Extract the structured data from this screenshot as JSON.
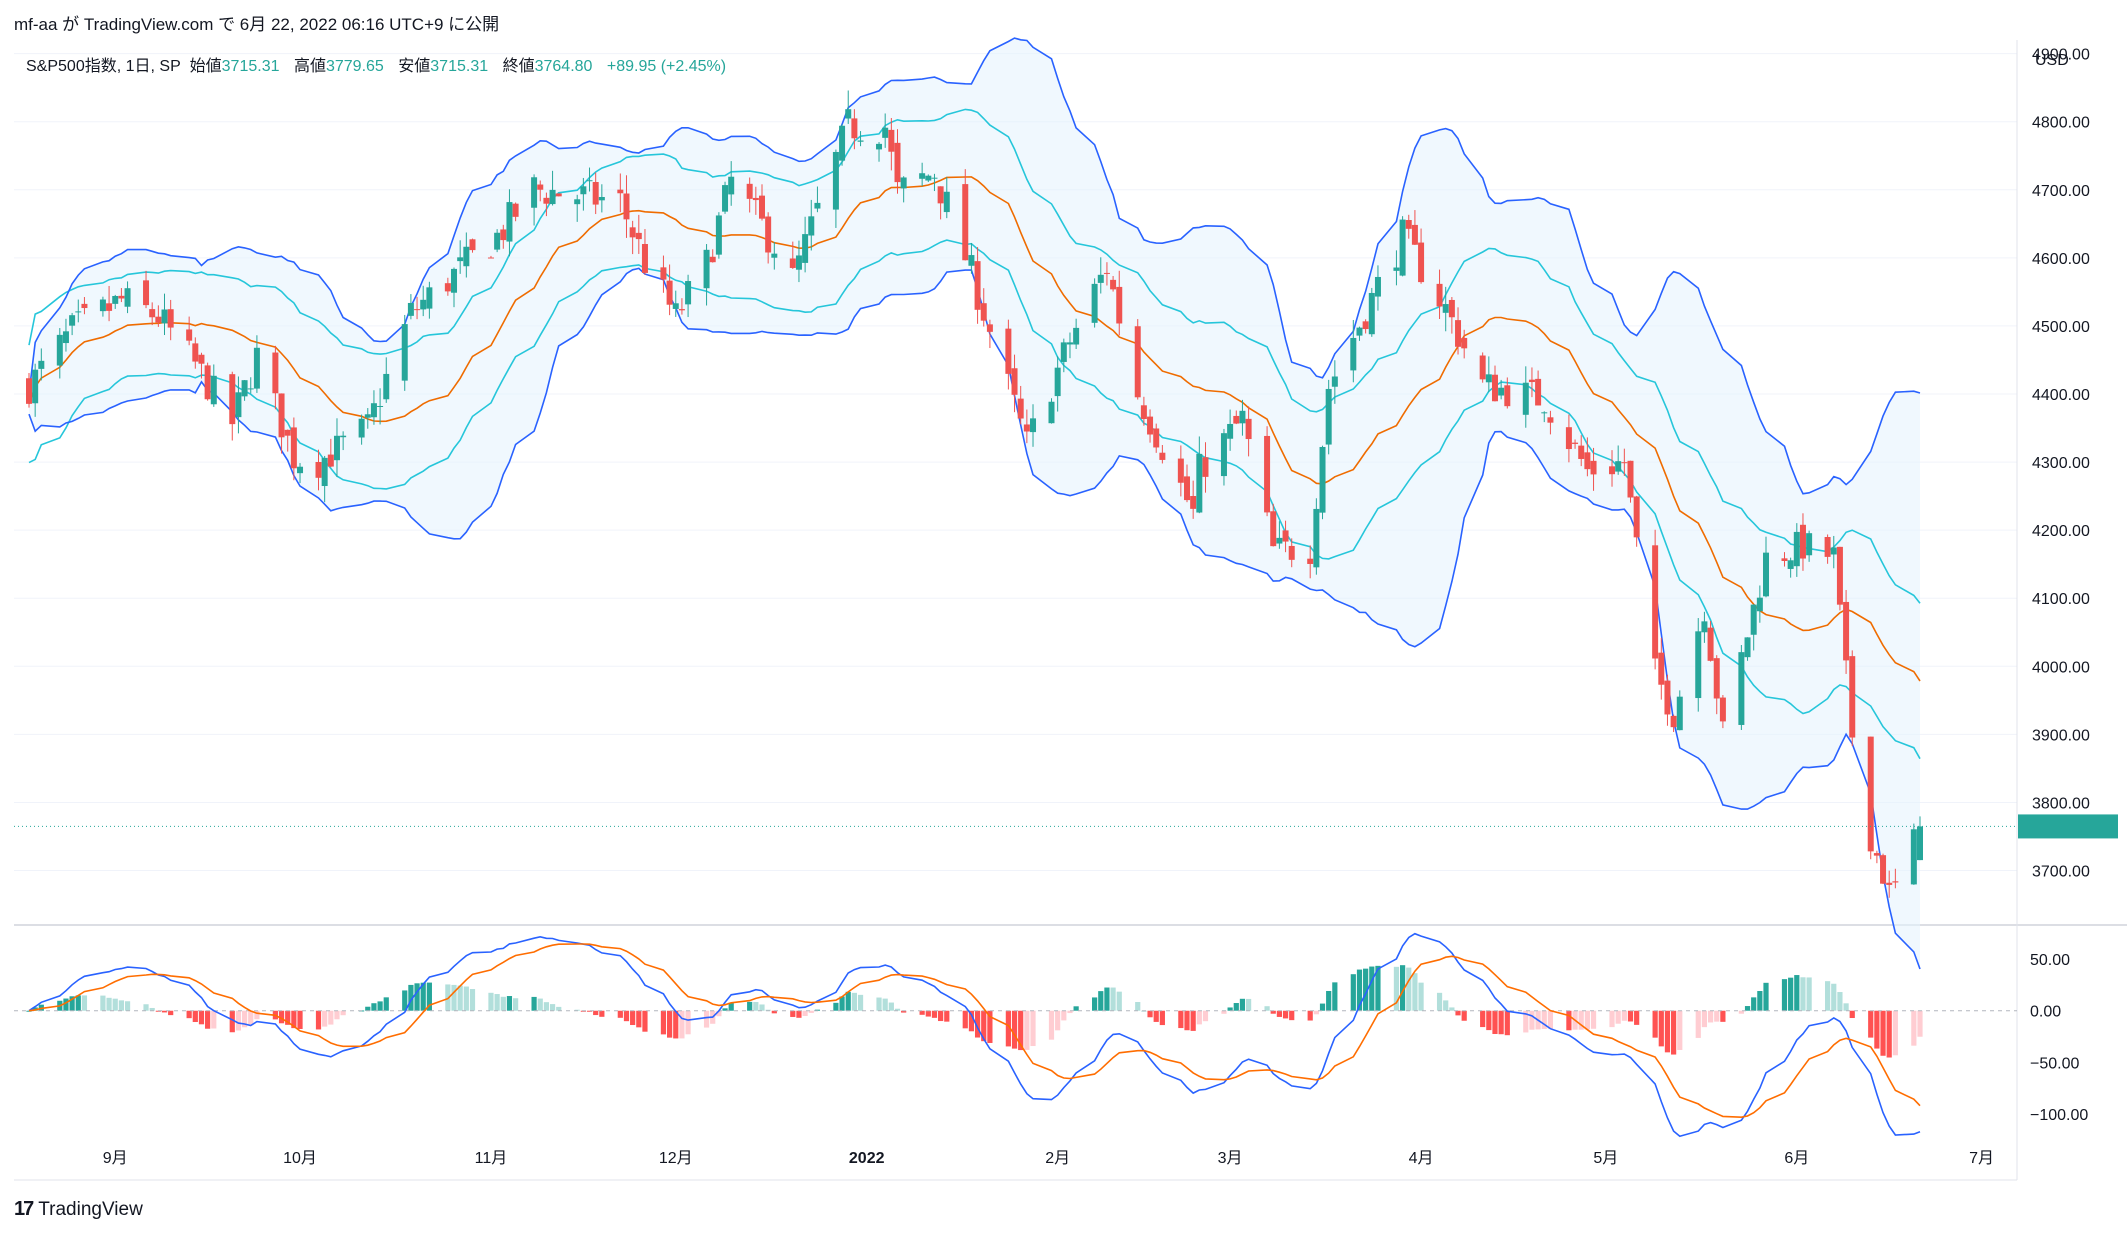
{
  "header": {
    "caption": "mf-aa が TradingView.com で 6月 22, 2022 06:16 UTC+9 に公開"
  },
  "legend": {
    "symbol": "S&P500指数, 1日, SP",
    "open_label": "始値",
    "open": "3715.31",
    "high_label": "高値",
    "high": "3779.65",
    "low_label": "安値",
    "low": "3715.31",
    "close_label": "終値",
    "close": "3764.80",
    "change": "+89.95 (+2.45%)"
  },
  "currency": "USD",
  "brand": {
    "logo": "17",
    "name": "TradingView"
  },
  "colors": {
    "up": "#26a69a",
    "down": "#ef5350",
    "bb_mid": "#ef6c00",
    "bb_outer": "#2962ff",
    "kc": "#26c6da",
    "band_fill": "#e3f2fd",
    "macd_line": "#2962ff",
    "signal_line": "#ff6d00",
    "hist_up_strong": "#26a69a",
    "hist_up_weak": "#b2dfdb",
    "hist_down_strong": "#ff5252",
    "hist_down_weak": "#ffcdd2",
    "grid": "#f0f3fa",
    "last_price_line": "#26a69a"
  },
  "chart_data": {
    "type": "candlestick",
    "price_axis": {
      "ylim": [
        3620,
        4920
      ],
      "ticks": [
        "3700.00",
        "3800.00",
        "3900.00",
        "4000.00",
        "4100.00",
        "4200.00",
        "4300.00",
        "4400.00",
        "4500.00",
        "4600.00",
        "4700.00",
        "4800.00",
        "4900.00"
      ]
    },
    "macd_axis": {
      "ylim": [
        -125,
        80
      ],
      "ticks": [
        "50.00",
        "0.00",
        "−50.00",
        "−100.00"
      ]
    },
    "x_labels": [
      "9月",
      "10月",
      "11月",
      "12月",
      "2022",
      "2月",
      "3月",
      "4月",
      "5月",
      "6月",
      "7月"
    ],
    "last_close": 3764.8,
    "price_series": [
      {
        "date": "2021-08-18",
        "close": 4412
      },
      {
        "date": "2021-08-25",
        "close": 4493
      },
      {
        "date": "2021-09-02",
        "close": 4537
      },
      {
        "date": "2021-09-08",
        "close": 4514
      },
      {
        "date": "2021-09-14",
        "close": 4443
      },
      {
        "date": "2021-09-20",
        "close": 4358
      },
      {
        "date": "2021-09-24",
        "close": 4455
      },
      {
        "date": "2021-09-30",
        "close": 4307
      },
      {
        "date": "2021-10-04",
        "close": 4300
      },
      {
        "date": "2021-10-12",
        "close": 4350
      },
      {
        "date": "2021-10-19",
        "close": 4519
      },
      {
        "date": "2021-10-26",
        "close": 4575
      },
      {
        "date": "2021-11-02",
        "close": 4631
      },
      {
        "date": "2021-11-08",
        "close": 4701
      },
      {
        "date": "2021-11-17",
        "close": 4688
      },
      {
        "date": "2021-11-22",
        "close": 4682
      },
      {
        "date": "2021-11-26",
        "close": 4594
      },
      {
        "date": "2021-12-01",
        "close": 4513
      },
      {
        "date": "2021-12-06",
        "close": 4591
      },
      {
        "date": "2021-12-10",
        "close": 4712
      },
      {
        "date": "2021-12-17",
        "close": 4620
      },
      {
        "date": "2021-12-20",
        "close": 4568
      },
      {
        "date": "2021-12-29",
        "close": 4793
      },
      {
        "date": "2022-01-04",
        "close": 4793
      },
      {
        "date": "2022-01-06",
        "close": 4696
      },
      {
        "date": "2022-01-12",
        "close": 4726
      },
      {
        "date": "2022-01-18",
        "close": 4577
      },
      {
        "date": "2022-01-24",
        "close": 4410
      },
      {
        "date": "2022-01-27",
        "close": 4326
      },
      {
        "date": "2022-02-03",
        "close": 4478
      },
      {
        "date": "2022-02-09",
        "close": 4587
      },
      {
        "date": "2022-02-14",
        "close": 4401
      },
      {
        "date": "2022-02-23",
        "close": 4225
      },
      {
        "date": "2022-02-24",
        "close": 4288
      },
      {
        "date": "2022-03-03",
        "close": 4363
      },
      {
        "date": "2022-03-08",
        "close": 4170
      },
      {
        "date": "2022-03-14",
        "close": 4173
      },
      {
        "date": "2022-03-17",
        "close": 4411
      },
      {
        "date": "2022-03-29",
        "close": 4631
      },
      {
        "date": "2022-04-05",
        "close": 4525
      },
      {
        "date": "2022-04-11",
        "close": 4413
      },
      {
        "date": "2022-04-21",
        "close": 4393
      },
      {
        "date": "2022-04-28",
        "close": 4287
      },
      {
        "date": "2022-05-04",
        "close": 4300
      },
      {
        "date": "2022-05-09",
        "close": 3991
      },
      {
        "date": "2022-05-12",
        "close": 3930
      },
      {
        "date": "2022-05-17",
        "close": 4088
      },
      {
        "date": "2022-05-20",
        "close": 3901
      },
      {
        "date": "2022-05-27",
        "close": 4158
      },
      {
        "date": "2022-06-02",
        "close": 4177
      },
      {
        "date": "2022-06-07",
        "close": 4160
      },
      {
        "date": "2022-06-10",
        "close": 3900
      },
      {
        "date": "2022-06-13",
        "close": 3750
      },
      {
        "date": "2022-06-16",
        "close": 3667
      },
      {
        "date": "2022-06-17",
        "close": 3675
      },
      {
        "date": "2022-06-21",
        "close": 3764.8
      }
    ],
    "indicators": [
      "Bollinger Bands",
      "Keltner Channel",
      "MACD"
    ]
  }
}
